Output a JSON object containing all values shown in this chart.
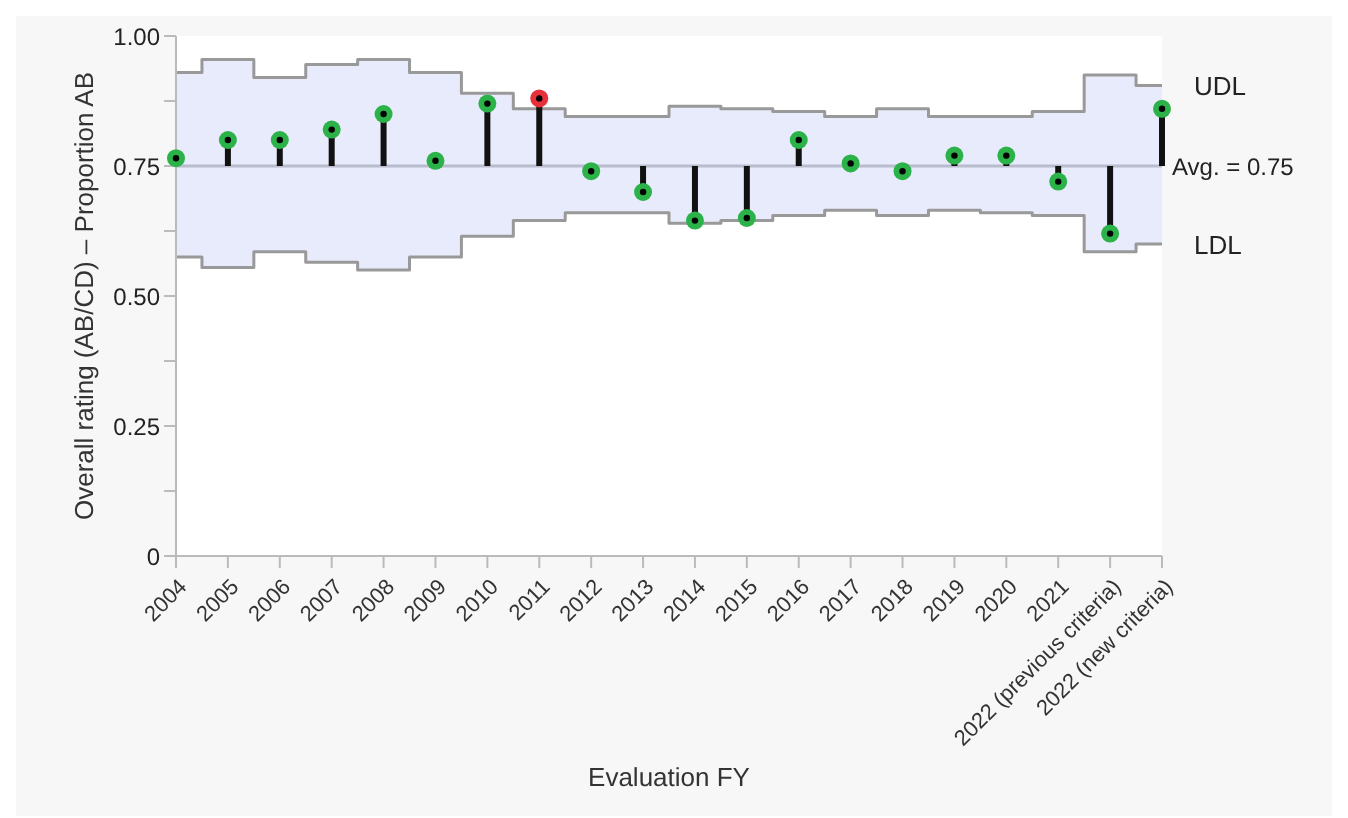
{
  "chart_data": {
    "type": "lollipop",
    "xlabel": "Evaluation FY",
    "ylabel": "Overall rating (AB/CD) – Proportion AB",
    "categories": [
      "2004",
      "2005",
      "2006",
      "2007",
      "2008",
      "2009",
      "2010",
      "2011",
      "2012",
      "2013",
      "2014",
      "2015",
      "2016",
      "2017",
      "2018",
      "2019",
      "2020",
      "2021",
      "2022 (previous criteria)",
      "2022 (new criteria)"
    ],
    "series": [
      {
        "marker": "circle",
        "color": "#111111",
        "colors": [
          "#2bb34a",
          "#2bb34a",
          "#2bb34a",
          "#2bb34a",
          "#2bb34a",
          "#2bb34a",
          "#2bb34a",
          "#e8303a",
          "#2bb34a",
          "#2bb34a",
          "#2bb34a",
          "#2bb34a",
          "#2bb34a",
          "#2bb34a",
          "#2bb34a",
          "#2bb34a",
          "#2bb34a",
          "#2bb34a",
          "#2bb34a",
          "#2bb34a"
        ],
        "values": [
          0.765,
          0.8,
          0.8,
          0.82,
          0.85,
          0.76,
          0.87,
          0.88,
          0.74,
          0.7,
          0.645,
          0.65,
          0.8,
          0.755,
          0.74,
          0.77,
          0.77,
          0.72,
          0.62,
          0.86
        ]
      },
      {
        "type": "step",
        "marker": "none",
        "name": "UDL",
        "color": "#999999",
        "values": [
          0.93,
          0.955,
          0.92,
          0.945,
          0.955,
          0.93,
          0.89,
          0.86,
          0.845,
          0.845,
          0.865,
          0.86,
          0.855,
          0.845,
          0.86,
          0.845,
          0.845,
          0.855,
          0.925,
          0.905
        ]
      },
      {
        "type": "step",
        "marker": "none",
        "name": "LDL",
        "color": "#999999",
        "values": [
          0.575,
          0.555,
          0.585,
          0.565,
          0.55,
          0.575,
          0.615,
          0.645,
          0.66,
          0.66,
          0.64,
          0.645,
          0.655,
          0.665,
          0.655,
          0.665,
          0.66,
          0.655,
          0.585,
          0.6
        ]
      }
    ],
    "ref_lines": [
      {
        "axis": "y",
        "value": 0.75,
        "label": "Avg. = 0.75",
        "color": "#b8bccc"
      }
    ],
    "ylim": [
      0,
      1
    ],
    "yticks": [
      0,
      {
        "value": 0.125,
        "label": null
      },
      {
        "value": 0.25,
        "label": "0.25"
      },
      {
        "value": 0.375,
        "label": null
      },
      {
        "value": 0.5,
        "label": "0.50"
      },
      {
        "value": 0.625,
        "label": null
      },
      {
        "value": 0.75,
        "label": "0.75"
      },
      {
        "value": 0.875,
        "label": null
      },
      {
        "value": 1,
        "label": "1.00"
      }
    ],
    "grid": false,
    "legend": false
  }
}
